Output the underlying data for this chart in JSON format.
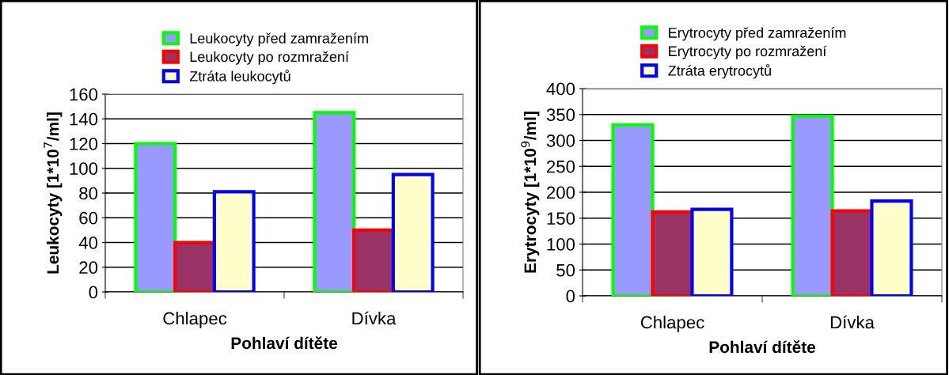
{
  "chart_data": [
    {
      "type": "bar",
      "categories": [
        "Chlapec",
        "Dívka"
      ],
      "xlabel": "Pohlaví dítěte",
      "ylabel": "Leukocyty [1*10$^{7}$/ml]",
      "ylim": [
        0,
        160
      ],
      "yticks": [
        0,
        20,
        40,
        60,
        80,
        100,
        120,
        140,
        160
      ],
      "grid": "y",
      "legend": "top",
      "series": [
        {
          "name": "Leukocyty před zamražením",
          "color": "#9999ff",
          "values": [
            120,
            145
          ]
        },
        {
          "name": "Leukocyty po rozmražení",
          "color": "#993366",
          "values": [
            40,
            50
          ]
        },
        {
          "name": "Ztráta leukocytů",
          "color": "#ffffcc",
          "values": [
            81,
            95
          ]
        }
      ]
    },
    {
      "type": "bar",
      "categories": [
        "Chlapec",
        "Dívka"
      ],
      "xlabel": "Pohlaví dítěte",
      "ylabel": "Erytrocyty [1*10$^{9}$/ml]",
      "ylim": [
        0,
        400
      ],
      "yticks": [
        0,
        50,
        100,
        150,
        200,
        250,
        300,
        350,
        400
      ],
      "grid": "y",
      "legend": "top",
      "series": [
        {
          "name": "Erytrocyty před zamražením",
          "color": "#9999ff",
          "values": [
            330,
            347
          ]
        },
        {
          "name": "Erytrocyty po rozmražení",
          "color": "#993366",
          "values": [
            162,
            164
          ]
        },
        {
          "name": "Ztráta erytrocytů",
          "color": "#ffffcc",
          "values": [
            167,
            183
          ]
        }
      ]
    }
  ]
}
